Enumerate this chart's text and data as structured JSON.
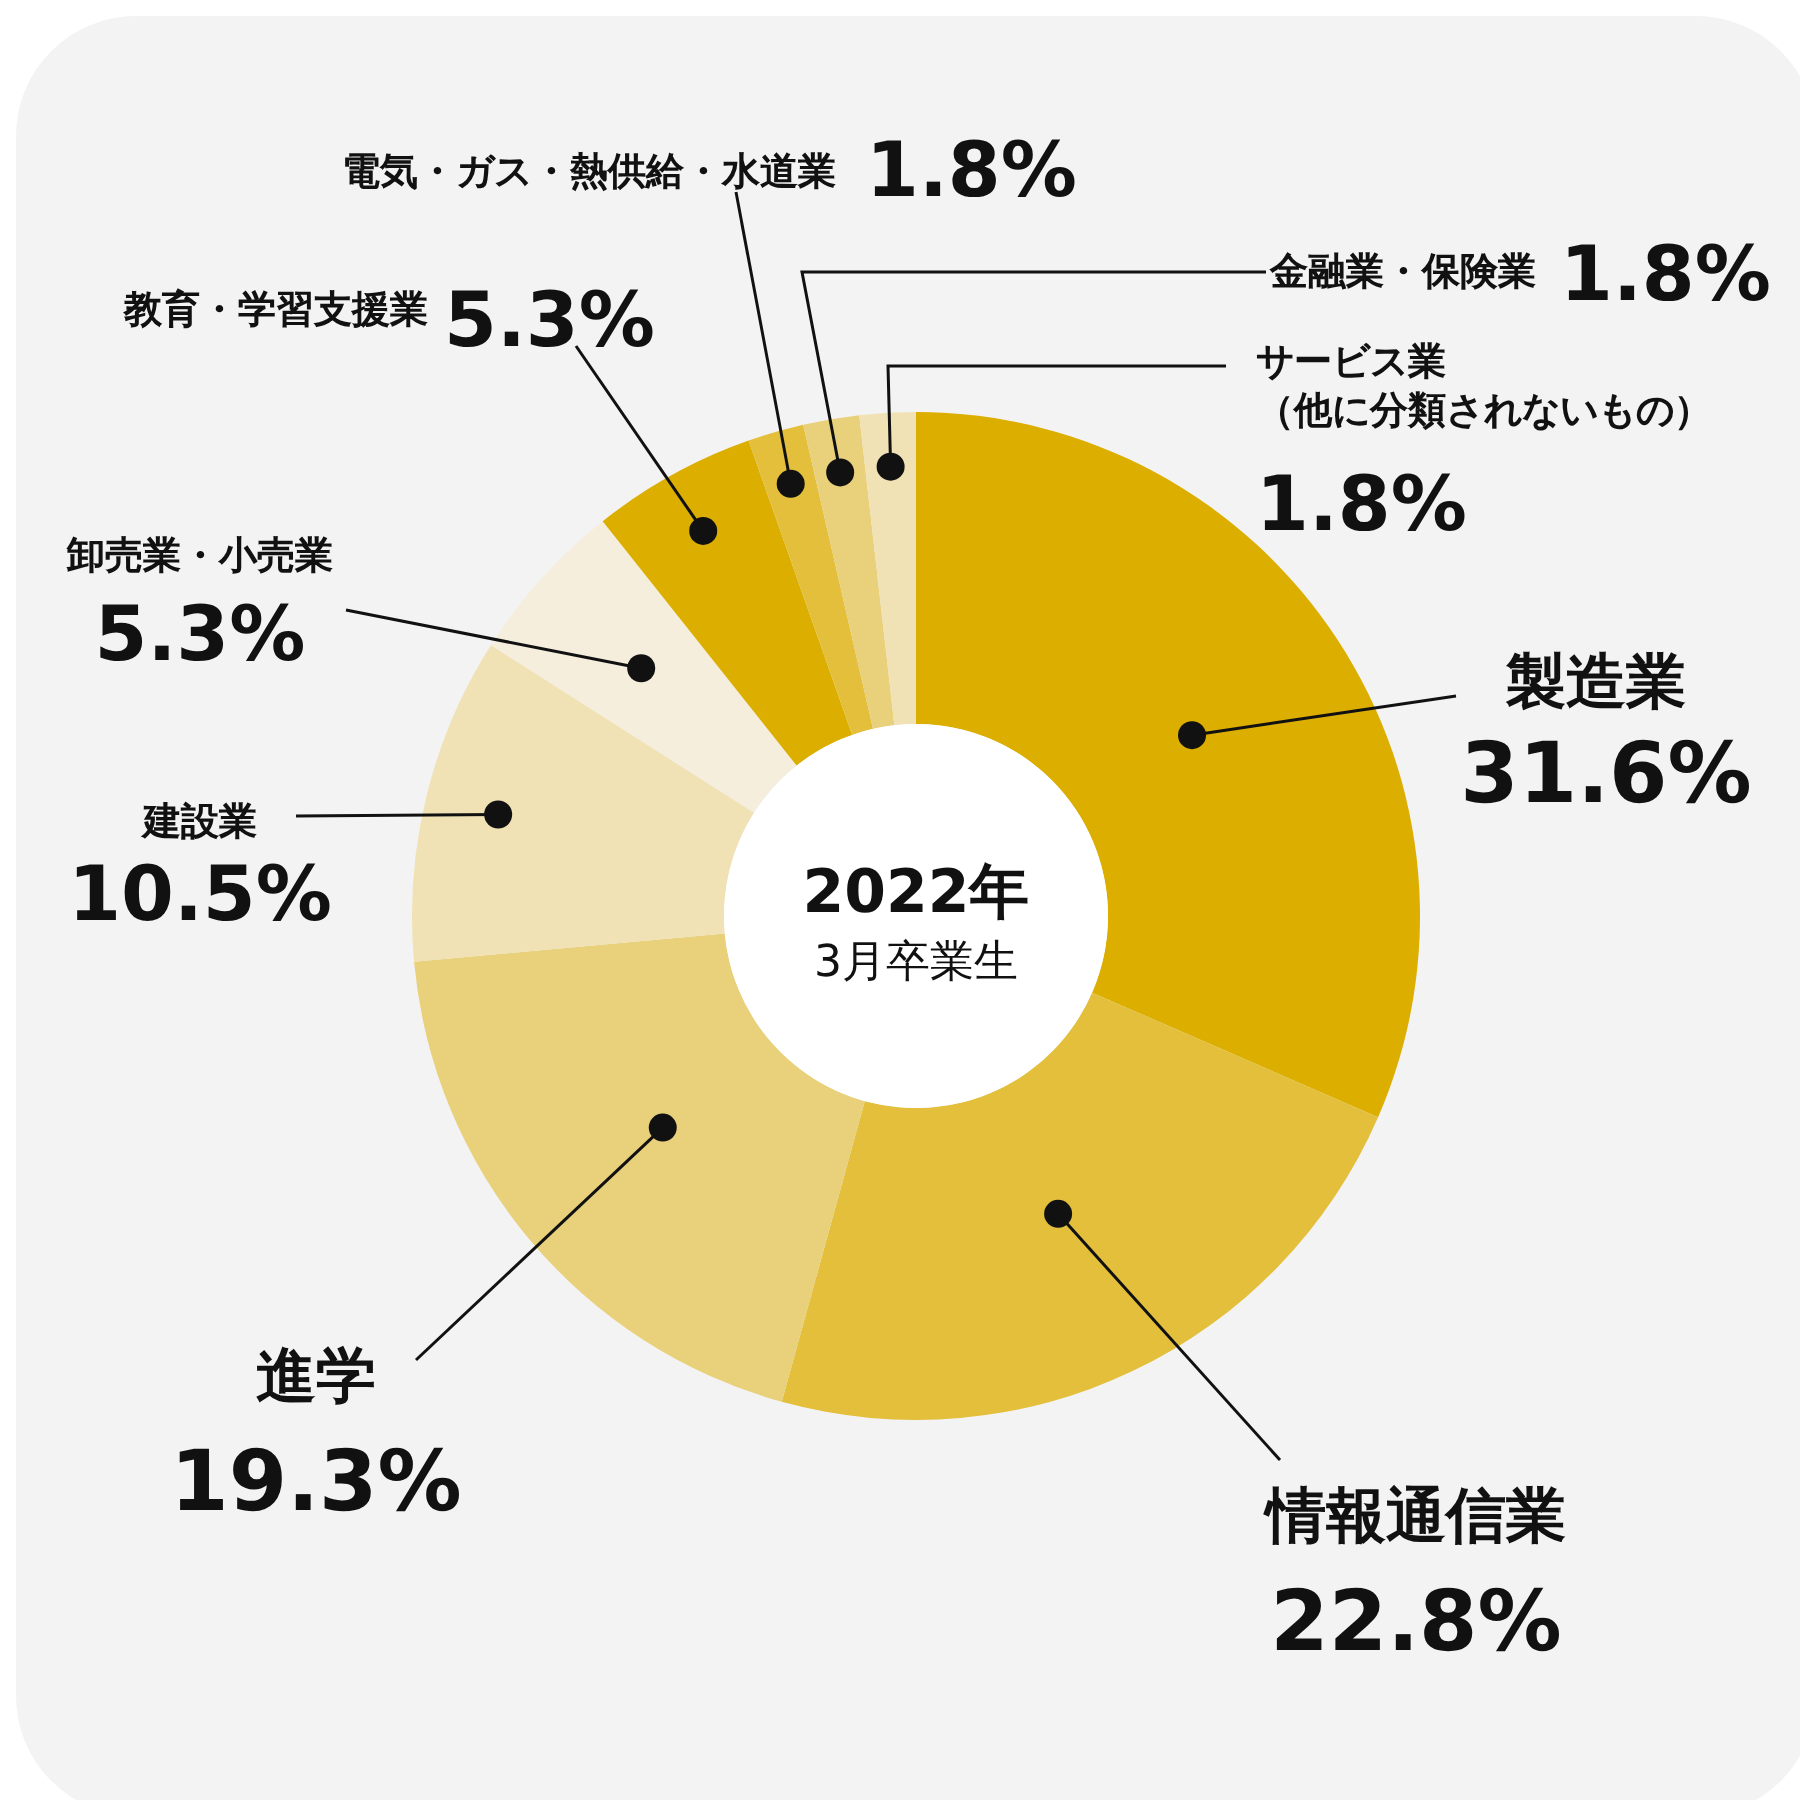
{
  "chart_data": {
    "type": "donut",
    "title": "2022年",
    "subtitle": "3月卒業生",
    "categories": [
      "製造業",
      "情報通信業",
      "進学",
      "建設業",
      "卸売業・小売業",
      "教育・学習支援業",
      "電気・ガス・熱供給・水道業",
      "金融業・保険業",
      "サービス業（他に分類されないもの）"
    ],
    "values": [
      31.6,
      22.8,
      19.3,
      10.5,
      5.3,
      5.3,
      1.8,
      1.8,
      1.8
    ],
    "value_labels": [
      "31.6%",
      "22.8%",
      "19.3%",
      "10.5%",
      "5.3%",
      "5.3%",
      "1.8%",
      "1.8%",
      "1.8%"
    ],
    "colors": [
      "#dcae00",
      "#e3bf3c",
      "#e9d07a",
      "#f0e2b4",
      "#f5eedc",
      "#dcae00",
      "#e3bf3c",
      "#e9d07a",
      "#f0e2b4"
    ]
  }
}
